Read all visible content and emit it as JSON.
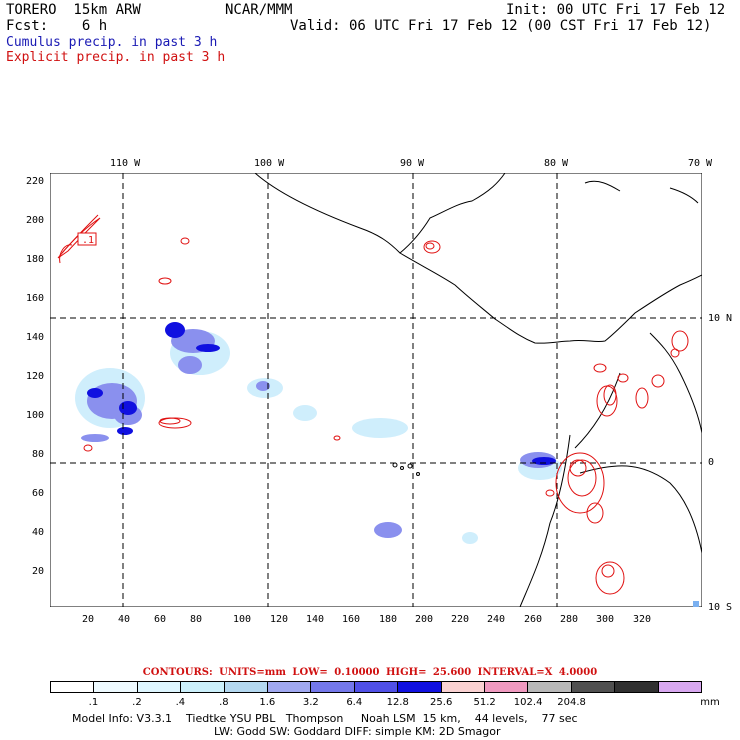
{
  "header": {
    "model": "TORERO  15km ARW",
    "org": "NCAR/MMM",
    "init": "Init: 00 UTC Fri 17 Feb 12",
    "fcst": "Fcst:    6 h",
    "valid": "Valid: 06 UTC Fri 17 Feb 12 (00 CST Fri 17 Feb 12)",
    "cumulus": "Cumulus precip. in past 3 h",
    "explicit": "Explicit precip. in past 3 h"
  },
  "map": {
    "lon_labels": [
      "110 W",
      "100 W",
      "90 W",
      "80 W",
      "70 W"
    ],
    "lat_labels": [
      "10 N",
      "0",
      "10 S"
    ],
    "y_ticks": [
      "220",
      "200",
      "180",
      "160",
      "140",
      "120",
      "100",
      "80",
      "60",
      "40",
      "20"
    ],
    "x_ticks": [
      "20",
      "40",
      "60",
      "80",
      "100",
      "120",
      "140",
      "160",
      "180",
      "200",
      "220",
      "240",
      "260",
      "280",
      "300",
      "320"
    ],
    "contour_label": ".1",
    "colors": {
      "coast": "#000000",
      "cumulus": "#1010e0",
      "explicit": "#e01010",
      "grid": "#000000"
    }
  },
  "contours_line": "CONTOURS:  UNITS=mm  LOW= 0.10000      HIGH=  25.600      INTERVAL=X  4.0000",
  "legend": {
    "colors": [
      "#ffffff",
      "#eefaff",
      "#def6ff",
      "#ccf0fb",
      "#b4d8f0",
      "#a0a8f0",
      "#7478ea",
      "#5050e6",
      "#1010e0",
      "#fad2d2",
      "#f09ac0",
      "#b8b8b8",
      "#505050",
      "#303030",
      "#d8a8f0"
    ],
    "labels": [
      ".1",
      ".2",
      ".4",
      ".8",
      "1.6",
      "3.2",
      "6.4",
      "12.8",
      "25.6",
      "51.2",
      "102.4",
      "204.8"
    ],
    "unit": "mm"
  },
  "footer": {
    "line1": "Model Info: V3.3.1    Tiedtke YSU PBL   Thompson     Noah LSM  15 km,    44 levels,    77 sec",
    "line2": "LW: Godd SW: Goddard DIFF: simple KM: 2D Smagor"
  }
}
